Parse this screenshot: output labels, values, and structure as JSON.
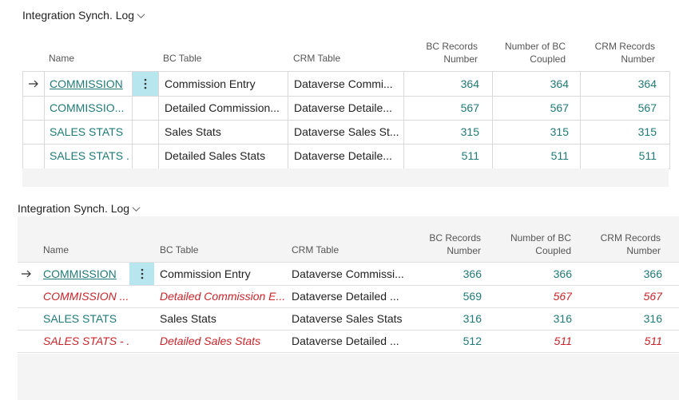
{
  "panel1": {
    "title": "Integration Synch. Log",
    "headers": {
      "name": "Name",
      "bc_table": "BC Table",
      "crm_table": "CRM Table",
      "bc_records_1": "BC Records",
      "bc_records_2": "Number",
      "bc_coupled_1": "Number of BC",
      "bc_coupled_2": "Coupled",
      "crm_records_1": "CRM Records",
      "crm_records_2": "Number"
    },
    "rows": [
      {
        "name": "COMMISSION",
        "bc_table": "Commission Entry",
        "crm_table": "Dataverse Commi...",
        "bc_records": "364",
        "bc_coupled": "364",
        "crm_records": "364"
      },
      {
        "name": "COMMISSIO...",
        "bc_table": "Detailed Commission...",
        "crm_table": "Dataverse Detaile...",
        "bc_records": "567",
        "bc_coupled": "567",
        "crm_records": "567"
      },
      {
        "name": "SALES STATS",
        "bc_table": "Sales Stats",
        "crm_table": "Dataverse Sales St...",
        "bc_records": "315",
        "bc_coupled": "315",
        "crm_records": "315"
      },
      {
        "name": "SALES STATS ...",
        "bc_table": "Detailed Sales Stats",
        "crm_table": "Dataverse Detaile...",
        "bc_records": "511",
        "bc_coupled": "511",
        "crm_records": "511"
      }
    ]
  },
  "panel2": {
    "title": "Integration Synch. Log",
    "headers": {
      "name": "Name",
      "bc_table": "BC Table",
      "crm_table": "CRM Table",
      "bc_records_1": "BC Records",
      "bc_records_2": "Number",
      "bc_coupled_1": "Number of BC",
      "bc_coupled_2": "Coupled",
      "crm_records_1": "CRM Records",
      "crm_records_2": "Number"
    },
    "rows": [
      {
        "name": "COMMISSION",
        "bc_table": "Commission Entry",
        "crm_table": "Dataverse Commissi...",
        "bc_records": "366",
        "bc_coupled": "366",
        "crm_records": "366"
      },
      {
        "name": "COMMISSION ...",
        "bc_table": "Detailed Commission E...",
        "crm_table": "Dataverse Detailed ...",
        "bc_records": "569",
        "bc_coupled": "567",
        "crm_records": "567"
      },
      {
        "name": "SALES STATS",
        "bc_table": "Sales Stats",
        "crm_table": "Dataverse Sales Stats",
        "bc_records": "316",
        "bc_coupled": "316",
        "crm_records": "316"
      },
      {
        "name": "SALES STATS - ...",
        "bc_table": "Detailed Sales Stats",
        "crm_table": "Dataverse Detailed ...",
        "bc_records": "512",
        "bc_coupled": "511",
        "crm_records": "511"
      }
    ]
  },
  "colors": {
    "link": "#207a77",
    "error": "#c8242a",
    "selected_cell": "#b8e6ee"
  }
}
